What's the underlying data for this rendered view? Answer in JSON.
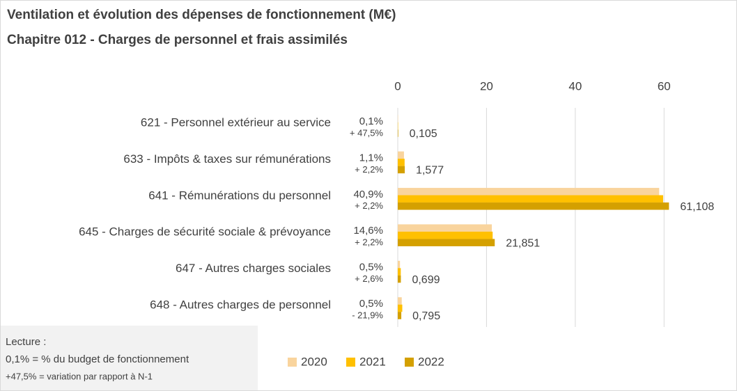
{
  "chart_data": {
    "type": "hbar",
    "title": "Ventilation et évolution des dépenses de fonctionnement (M€)",
    "subtitle": "Chapitre 012 - Charges de personnel et frais assimilés",
    "categories": [
      "621 - Personnel extérieur au service",
      "633 - Impôts & taxes sur rémunérations",
      "641 - Rémunérations du personnel",
      "645 - Charges de sécurité sociale & prévoyance",
      "647 - Autres charges sociales",
      "648 - Autres charges de personnel"
    ],
    "series": [
      {
        "name": "2020",
        "color": "#f9d49d",
        "values": [
          0.07,
          1.4,
          58.9,
          21.2,
          0.5,
          0.9
        ]
      },
      {
        "name": "2021",
        "color": "#ffc000",
        "values": [
          0.071,
          1.543,
          59.79,
          21.38,
          0.681,
          1.018
        ]
      },
      {
        "name": "2022",
        "color": "#d4a000",
        "values": [
          0.105,
          1.577,
          61.108,
          21.851,
          0.699,
          0.795
        ],
        "value_labels": [
          "0,105",
          "1,577",
          "61,108",
          "21,851",
          "0,699",
          "0,795"
        ]
      }
    ],
    "shares": [
      "0,1%",
      "1,1%",
      "40,9%",
      "14,6%",
      "0,5%",
      "0,5%"
    ],
    "variations": [
      "+ 47,5%",
      "+ 2,2%",
      "+ 2,2%",
      "+ 2,2%",
      "+ 2,6%",
      "- 21,9%"
    ],
    "xlim": [
      0,
      70
    ],
    "xticks": [
      0,
      20,
      40,
      60
    ],
    "grid": true,
    "note": [
      "Lecture :",
      "0,1% = % du budget de fonctionnement",
      "+47,5% = variation par rapport à N-1"
    ]
  }
}
